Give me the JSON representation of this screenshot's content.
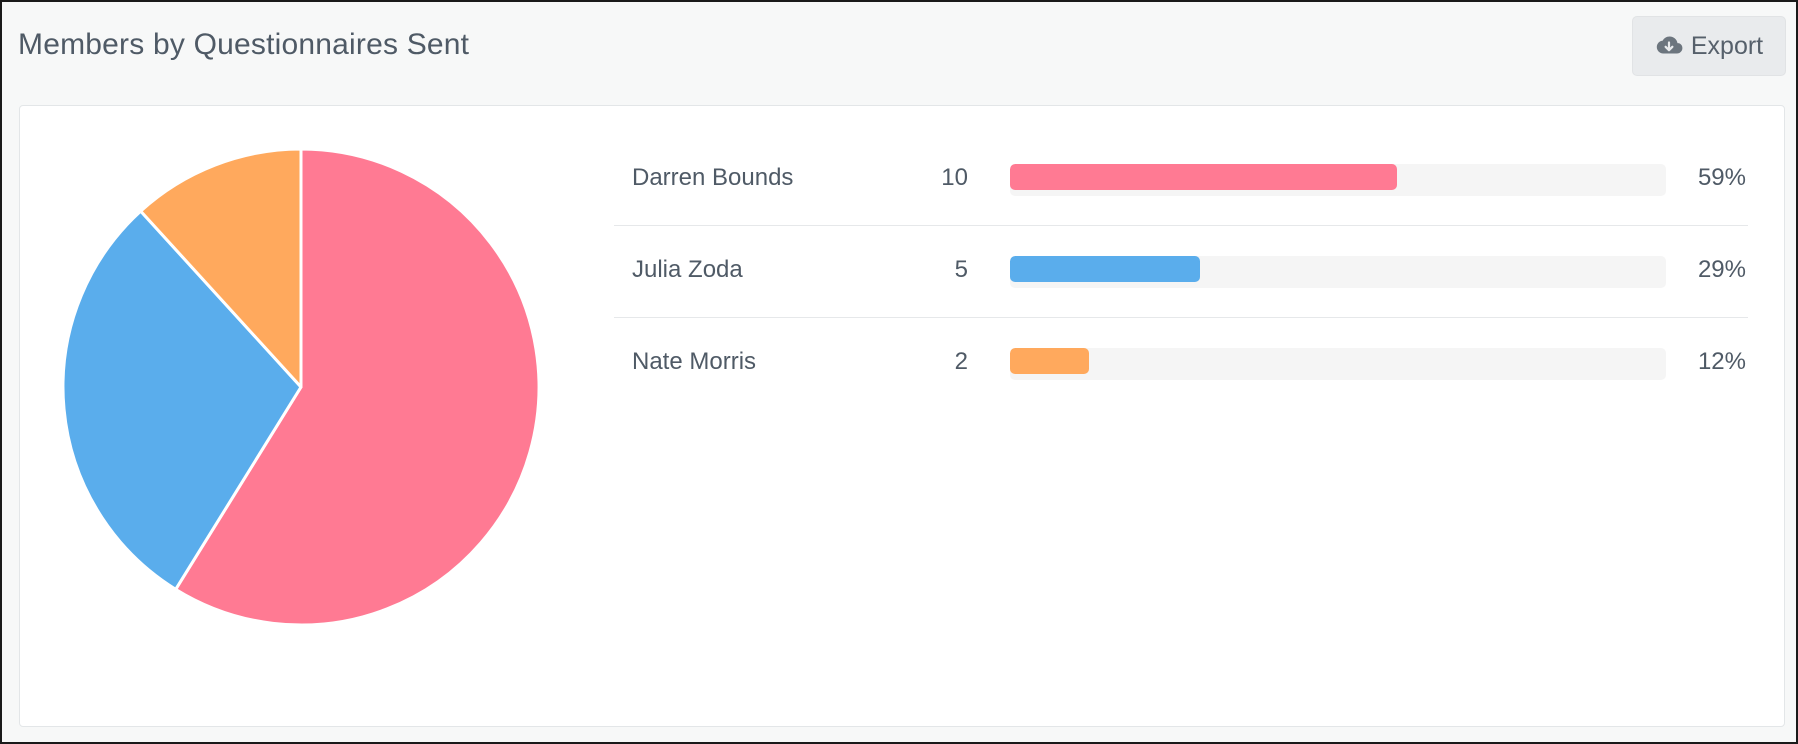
{
  "header": {
    "title": "Members by Questionnaires Sent",
    "export_label": "Export",
    "export_icon": "cloud-download-icon"
  },
  "colors": {
    "pink": "#ff7a93",
    "blue": "#5aadec",
    "orange": "#ffa95d",
    "track": "#f5f5f5"
  },
  "chart_data": [
    {
      "type": "pie",
      "categories": [
        "Darren Bounds",
        "Julia Zoda",
        "Nate Morris"
      ],
      "values": [
        10,
        5,
        2
      ],
      "colors": [
        "#ff7a93",
        "#5aadec",
        "#ffa95d"
      ]
    },
    {
      "type": "bar",
      "categories": [
        "Darren Bounds",
        "Julia Zoda",
        "Nate Morris"
      ],
      "values": [
        10,
        5,
        2
      ],
      "percent_labels": [
        "59%",
        "29%",
        "12%"
      ],
      "percent_values": [
        59,
        29,
        12
      ],
      "colors": [
        "#ff7a93",
        "#5aadec",
        "#ffa95d"
      ]
    }
  ],
  "rows": [
    {
      "name": "Darren Bounds",
      "count": "10",
      "pct": "59%",
      "fraction": 0.59,
      "color": "#ff7a93"
    },
    {
      "name": "Julia Zoda",
      "count": "5",
      "pct": "29%",
      "fraction": 0.29,
      "color": "#5aadec"
    },
    {
      "name": "Nate Morris",
      "count": "2",
      "pct": "12%",
      "fraction": 0.12,
      "color": "#ffa95d"
    }
  ]
}
